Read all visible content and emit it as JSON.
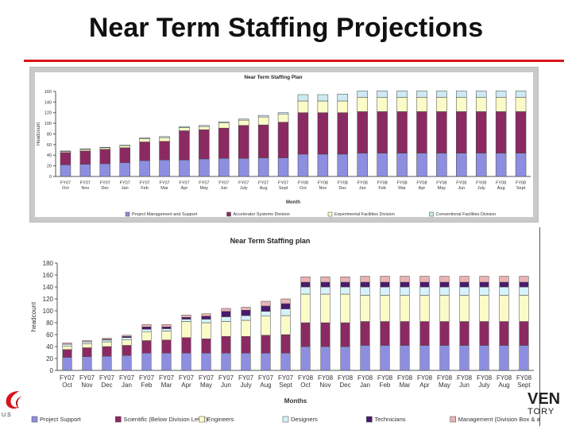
{
  "slide": {
    "title": "Near Term Staffing Projections"
  },
  "logos": {
    "right_line1": "VEN",
    "right_line2": "TORY",
    "left_mark": "U.S"
  },
  "chart_data": [
    {
      "type": "bar",
      "stacked": true,
      "title": "Near Term Staffing Plan",
      "xlabel": "Month",
      "ylabel": "Headcount",
      "ylim": [
        0,
        160
      ],
      "yticks": [
        0,
        20,
        40,
        60,
        80,
        100,
        120,
        140,
        160
      ],
      "grid": false,
      "legend_position": "bottom",
      "categories": [
        [
          "FY07",
          "Oct"
        ],
        [
          "FY07",
          "Nov"
        ],
        [
          "FY07",
          "Dec"
        ],
        [
          "FY07",
          "Jan"
        ],
        [
          "FY07",
          "Feb"
        ],
        [
          "FY07",
          "Mar"
        ],
        [
          "FY07",
          "Apr"
        ],
        [
          "FY07",
          "May"
        ],
        [
          "FY07",
          "Jun"
        ],
        [
          "FY07",
          "July"
        ],
        [
          "FY07",
          "Aug"
        ],
        [
          "FY07",
          "Sept"
        ],
        [
          "FY08",
          "Oct"
        ],
        [
          "FY08",
          "Nov"
        ],
        [
          "FY08",
          "Dec"
        ],
        [
          "FY08",
          "Jan"
        ],
        [
          "FY08",
          "Feb"
        ],
        [
          "FY08",
          "Mar"
        ],
        [
          "FY08",
          "Apr"
        ],
        [
          "FY08",
          "May"
        ],
        [
          "FY08",
          "Jun"
        ],
        [
          "FY08",
          "July"
        ],
        [
          "FY08",
          "Aug"
        ],
        [
          "FY08",
          "Sept"
        ]
      ],
      "series": [
        {
          "name": "Project Management and Support",
          "color": "#8e8ee0",
          "values": [
            22,
            23,
            24,
            26,
            30,
            31,
            31,
            33,
            34,
            34,
            35,
            35,
            42,
            42,
            42,
            44,
            44,
            44,
            44,
            44,
            44,
            44,
            44,
            44
          ]
        },
        {
          "name": "Accelerator Systems Division",
          "color": "#8b2a62",
          "values": [
            23,
            25,
            27,
            28,
            35,
            35,
            55,
            55,
            57,
            62,
            62,
            67,
            78,
            78,
            78,
            78,
            78,
            78,
            78,
            78,
            78,
            78,
            78,
            78
          ]
        },
        {
          "name": "Experimental Facilities Division",
          "color": "#fbfbc8",
          "values": [
            2,
            3,
            3,
            4,
            6,
            7,
            6,
            6,
            10,
            10,
            15,
            15,
            22,
            22,
            22,
            27,
            27,
            27,
            27,
            27,
            27,
            27,
            27,
            27
          ]
        },
        {
          "name": "Conventional Facilities Division",
          "color": "#cde9f3",
          "values": [
            1,
            1,
            1,
            1,
            2,
            2,
            2,
            2,
            2,
            2,
            3,
            3,
            12,
            12,
            13,
            12,
            12,
            12,
            12,
            12,
            12,
            12,
            12,
            12
          ]
        }
      ]
    },
    {
      "type": "bar",
      "stacked": true,
      "title": "Near Term Staffing plan",
      "xlabel": "Months",
      "ylabel": "headcount",
      "ylim": [
        0,
        180
      ],
      "yticks": [
        0,
        20,
        40,
        60,
        80,
        100,
        120,
        140,
        160,
        180
      ],
      "grid": false,
      "legend_position": "bottom",
      "categories": [
        [
          "FY07",
          "Oct"
        ],
        [
          "FY07",
          "Nov"
        ],
        [
          "FY07",
          "Dec"
        ],
        [
          "FY07",
          "Jan"
        ],
        [
          "FY07",
          "Feb"
        ],
        [
          "FY07",
          "Mar"
        ],
        [
          "FY07",
          "Apr"
        ],
        [
          "FY07",
          "May"
        ],
        [
          "FY07",
          "Jun"
        ],
        [
          "FY07",
          "July"
        ],
        [
          "FY07",
          "Aug"
        ],
        [
          "FY07",
          "Sept"
        ],
        [
          "FY08",
          "Oct"
        ],
        [
          "FY08",
          "Nov"
        ],
        [
          "FY08",
          "Dec"
        ],
        [
          "FY08",
          "Jan"
        ],
        [
          "FY08",
          "Feb"
        ],
        [
          "FY08",
          "Mar"
        ],
        [
          "FY08",
          "Apr"
        ],
        [
          "FY08",
          "May"
        ],
        [
          "FY08",
          "Jun"
        ],
        [
          "FY08",
          "July"
        ],
        [
          "FY08",
          "Aug"
        ],
        [
          "FY08",
          "Sept"
        ]
      ],
      "series": [
        {
          "name": "Project Support",
          "color": "#8e8ee0",
          "values": [
            22,
            23,
            24,
            25,
            29,
            29,
            29,
            29,
            29,
            29,
            29,
            29,
            40,
            40,
            40,
            42,
            42,
            42,
            42,
            42,
            42,
            42,
            42,
            42
          ]
        },
        {
          "name": "Scientific (Below Division Level)",
          "color": "#8b2a62",
          "values": [
            13,
            15,
            16,
            17,
            21,
            22,
            26,
            24,
            28,
            28,
            30,
            31,
            40,
            40,
            40,
            40,
            40,
            40,
            40,
            40,
            40,
            40,
            40,
            40
          ]
        },
        {
          "name": "Engineers",
          "color": "#fbfbc8",
          "values": [
            6,
            7,
            8,
            9,
            15,
            15,
            27,
            27,
            25,
            27,
            32,
            32,
            48,
            48,
            48,
            44,
            44,
            44,
            44,
            44,
            44,
            44,
            44,
            44
          ]
        },
        {
          "name": "Designers",
          "color": "#d6f2fb",
          "values": [
            3,
            3,
            3,
            4,
            4,
            4,
            4,
            6,
            8,
            8,
            8,
            11,
            12,
            12,
            12,
            14,
            14,
            14,
            14,
            14,
            14,
            14,
            14,
            14
          ]
        },
        {
          "name": "Technicians",
          "color": "#4a1a6e",
          "values": [
            0,
            0,
            1,
            2,
            4,
            3,
            3,
            5,
            9,
            9,
            9,
            9,
            8,
            8,
            8,
            8,
            8,
            8,
            8,
            8,
            8,
            8,
            8,
            8
          ]
        },
        {
          "name": "Management (Division Box & above)",
          "color": "#eab3b3",
          "values": [
            2,
            2,
            2,
            2,
            4,
            4,
            4,
            4,
            5,
            5,
            8,
            8,
            9,
            9,
            9,
            10,
            10,
            10,
            10,
            10,
            10,
            10,
            10,
            10
          ]
        }
      ]
    }
  ]
}
